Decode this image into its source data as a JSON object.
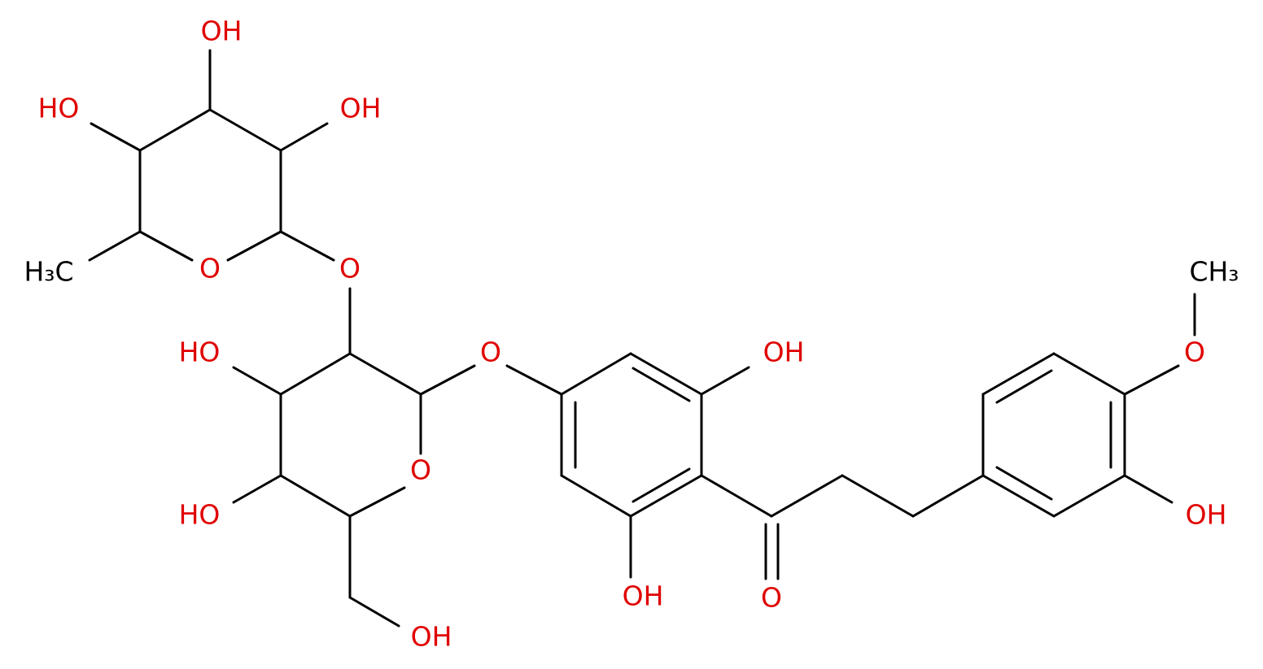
{
  "atoms": [
    {
      "label": "OH"
    },
    {
      "label": "HO"
    },
    {
      "label": "OH"
    },
    {
      "label": "H₃C"
    },
    {
      "label": "O"
    },
    {
      "label": "O"
    },
    {
      "label": "HO"
    },
    {
      "label": "O"
    },
    {
      "label": "HO"
    },
    {
      "label": "OH"
    },
    {
      "label": "O"
    },
    {
      "label": "OH"
    },
    {
      "label": "OH"
    },
    {
      "label": "O"
    },
    {
      "label": "CH₃"
    },
    {
      "label": "O"
    },
    {
      "label": "OH"
    }
  ]
}
